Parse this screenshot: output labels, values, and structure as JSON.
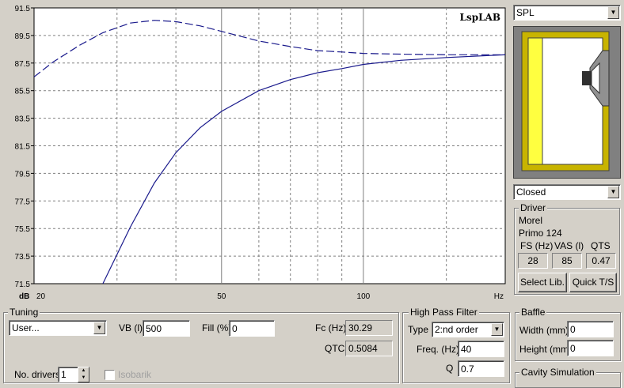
{
  "chart_data": {
    "type": "line",
    "brand": "LspLAB",
    "yunit": "dB",
    "xunit": "Hz",
    "xscale": "log",
    "xlim": [
      20,
      200
    ],
    "ylim": [
      71.5,
      91.5
    ],
    "yticks": [
      "91.5",
      "89.5",
      "87.5",
      "85.5",
      "83.5",
      "81.5",
      "79.5",
      "77.5",
      "75.5",
      "73.5",
      "71.5"
    ],
    "xtick_labels": [
      {
        "x": 20,
        "label": "20"
      },
      {
        "x": 50,
        "label": "50"
      },
      {
        "x": 100,
        "label": "100"
      }
    ],
    "grid": true,
    "series": [
      {
        "style": "solid",
        "color": "#1a1a8c",
        "x": [
          28,
          32,
          36,
          40,
          45,
          50,
          60,
          70,
          80,
          90,
          100,
          120,
          150,
          200
        ],
        "y": [
          71.5,
          75.6,
          78.8,
          81.0,
          82.8,
          84.0,
          85.5,
          86.3,
          86.8,
          87.1,
          87.4,
          87.7,
          87.9,
          88.1
        ]
      },
      {
        "style": "dashed",
        "color": "#1a1a8c",
        "x": [
          20,
          22,
          25,
          28,
          32,
          36,
          40,
          45,
          50,
          60,
          70,
          80,
          90,
          100,
          120,
          150,
          200
        ],
        "y": [
          86.5,
          87.6,
          88.8,
          89.7,
          90.4,
          90.6,
          90.5,
          90.2,
          89.8,
          89.1,
          88.7,
          88.4,
          88.3,
          88.2,
          88.15,
          88.1,
          88.1
        ]
      }
    ]
  },
  "right": {
    "graph_select": "SPL",
    "box_type": "Closed",
    "driver_legend": "Driver",
    "driver_brand": "Morel",
    "driver_model": "Primo 124",
    "fs_label": "FS (Hz)",
    "vas_label": "VAS (l)",
    "qts_label": "QTS",
    "fs_value": "28",
    "vas_value": "85",
    "qts_value": "0.47",
    "select_lib": "Select Lib.",
    "quick_ts": "Quick T/S"
  },
  "tuning": {
    "legend": "Tuning",
    "preset": "User...",
    "vb_label": "VB (l)",
    "vb_value": "500",
    "fill_label": "Fill (%)",
    "fill_value": "0",
    "fc_label": "Fc (Hz)",
    "fc_value": "30.29",
    "qtc_label": "QTC",
    "qtc_value": "0.5084",
    "drivers_label": "No. drivers",
    "drivers_value": "1",
    "isobarik_label": "Isobarik"
  },
  "hpf": {
    "legend": "High Pass Filter",
    "type_label": "Type",
    "type_value": "2:nd order",
    "freq_label": "Freq. (Hz)",
    "freq_value": "40",
    "q_label": "Q",
    "q_value": "0.7"
  },
  "baffle": {
    "legend": "Baffle",
    "width_label": "Width (mm)",
    "width_value": "0",
    "height_label": "Height (mm)",
    "height_value": "0",
    "cavity_legend": "Cavity Simulation"
  }
}
